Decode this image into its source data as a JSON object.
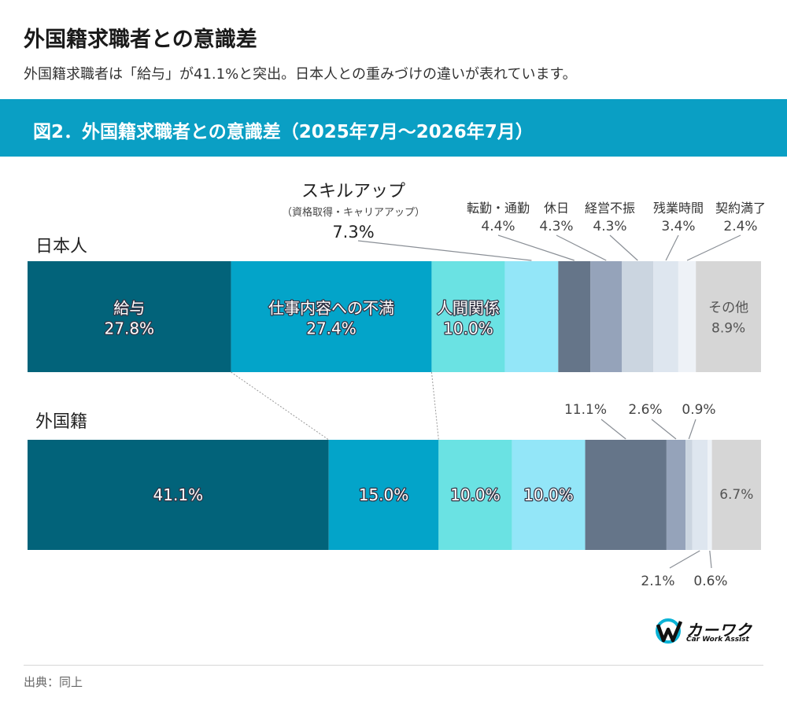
{
  "header": {
    "title": "外国籍求職者との意識差",
    "subtitle": "外国籍求職者は「給与」が41.1%と突出。日本人との重みづけの違いが表れています。"
  },
  "banner": {
    "text": "図2．外国籍求職者との意識差（2025年7月〜2026年7月）"
  },
  "footer": {
    "source": "出典：同上"
  },
  "logo": {
    "name": "カーワク",
    "sub": "Car Work Assist"
  },
  "colors": {
    "banner": "#0a9fc4",
    "segments": [
      "#02637a",
      "#03a4c9",
      "#6ae2e3",
      "#93e6f8",
      "#657589",
      "#95a3ba",
      "#cbd5e0",
      "#dee6ef",
      "#eef2f7",
      "#d6d6d6"
    ]
  },
  "chart_data": {
    "type": "bar",
    "orientation": "horizontal",
    "stacked": true,
    "unit": "%",
    "categories": [
      "給与",
      "仕事内容への不満",
      "人間関係",
      "スキルアップ",
      "転勤・通勤",
      "休日",
      "経営不振",
      "残業時間",
      "契約満了",
      "その他"
    ],
    "category_notes": {
      "スキルアップ": "（資格取得・キャリアアップ）"
    },
    "series": [
      {
        "name": "日本人",
        "values": [
          27.8,
          27.4,
          10.0,
          7.3,
          4.4,
          4.3,
          4.3,
          3.4,
          2.4,
          8.9
        ]
      },
      {
        "name": "外国籍",
        "values": [
          41.1,
          15.0,
          10.0,
          10.0,
          11.1,
          2.6,
          0.9,
          2.1,
          0.6,
          6.7
        ]
      }
    ]
  }
}
